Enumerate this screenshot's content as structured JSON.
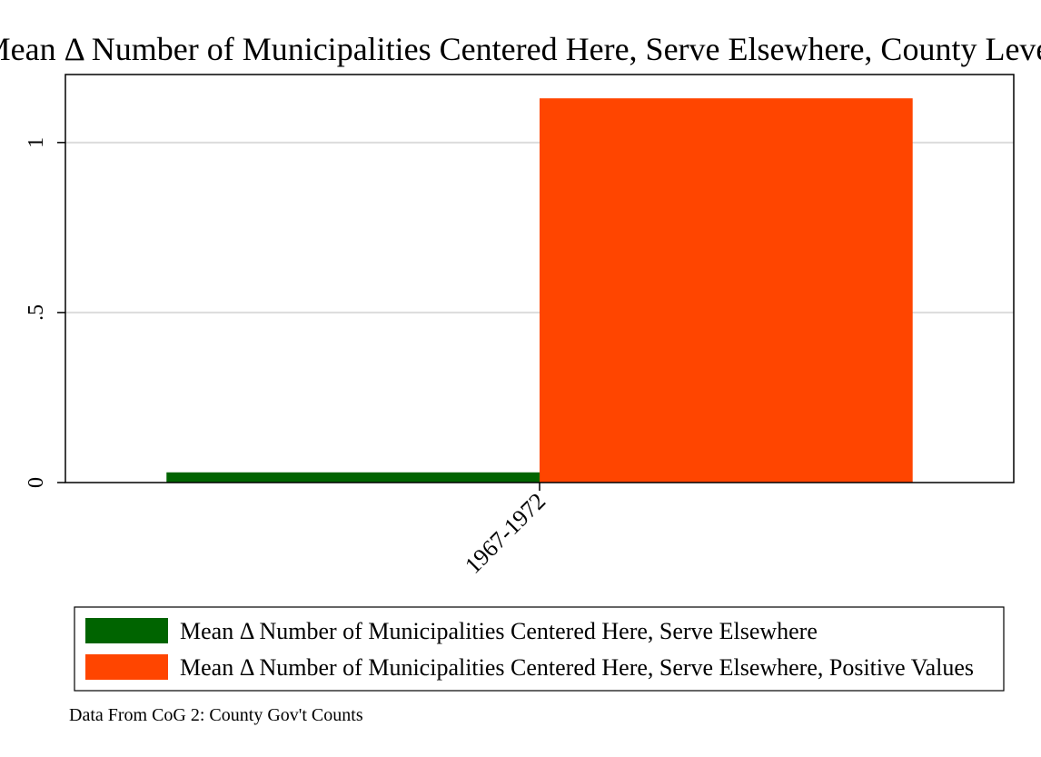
{
  "chart_data": {
    "type": "bar",
    "title": "Mean Δ Number of Municipalities Centered Here, Serve Elsewhere, County Level",
    "categories": [
      "1967-1972"
    ],
    "series": [
      {
        "name": "Mean Δ Number of Municipalities Centered Here, Serve Elsewhere",
        "values": [
          0.03
        ],
        "color": "#006400"
      },
      {
        "name": "Mean Δ Number of Municipalities Centered Here, Serve Elsewhere, Positive Values",
        "values": [
          1.13
        ],
        "color": "#ff4500"
      }
    ],
    "ylim": [
      0,
      1.2
    ],
    "yticks": [
      0,
      0.5,
      1
    ],
    "ytick_labels": [
      "0",
      ".5",
      "1"
    ],
    "grid": true,
    "legend_position": "bottom",
    "note": "Data From CoG 2: County Gov't Counts"
  }
}
